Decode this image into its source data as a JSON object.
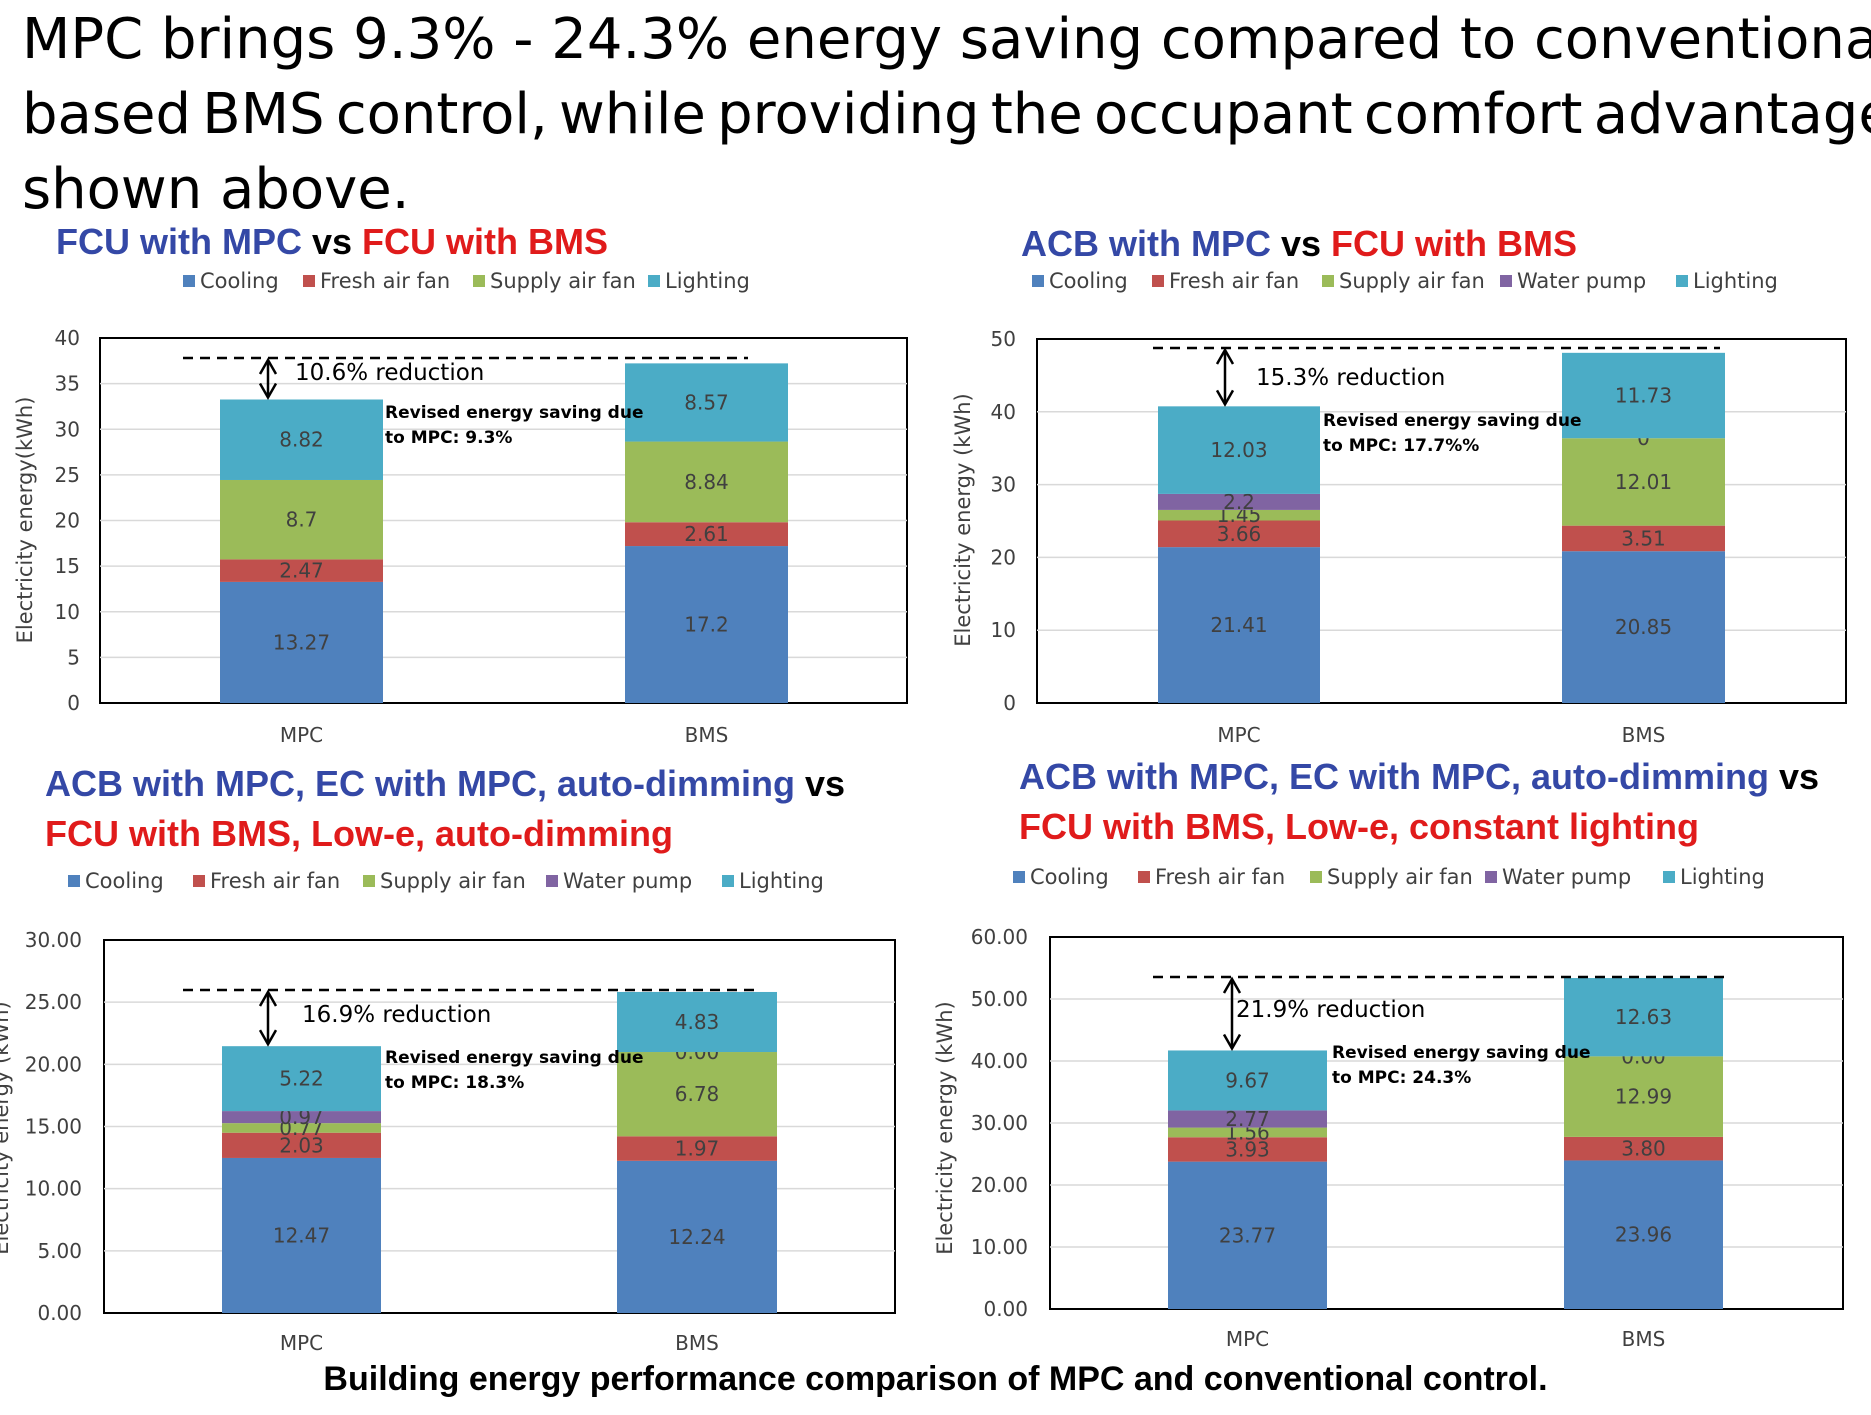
{
  "headline": {
    "line1": "MPC brings 9.3% - 24.3% energy saving compared to conventional reactive",
    "line2_words": [
      "based",
      "BMS",
      "control,",
      "while",
      "providing",
      "the",
      "occupant",
      "comfort",
      "advantages"
    ],
    "line3": "shown above."
  },
  "caption": "Building energy performance comparison of MPC and conventional control.",
  "colors": {
    "Cooling": "#4f81bd",
    "Fresh air fan": "#c0504d",
    "Supply air fan": "#9bbb59",
    "Water pump": "#8064a2",
    "Lighting": "#4bacc6"
  },
  "charts": [
    {
      "title_lines": [
        [
          {
            "text": "FCU with MPC",
            "color": "blue"
          },
          {
            "text": " vs ",
            "color": "blk"
          },
          {
            "text": "FCU with BMS",
            "color": "red"
          }
        ]
      ],
      "legend": [
        "Cooling",
        "Fresh air fan",
        "Supply air fan",
        "Lighting"
      ],
      "ylabel": "Electricity energy(kWh)",
      "annotation": "10.6% reduction",
      "note": [
        "Revised energy saving due",
        "to MPC: 9.3%"
      ]
    },
    {
      "title_lines": [
        [
          {
            "text": "ACB with MPC",
            "color": "blue"
          },
          {
            "text": " vs ",
            "color": "blk"
          },
          {
            "text": "FCU with BMS",
            "color": "red"
          }
        ]
      ],
      "legend": [
        "Cooling",
        "Fresh air fan",
        "Supply air fan",
        "Water pump",
        "Lighting"
      ],
      "ylabel": "Electricity energy (kWh)",
      "annotation": "15.3% reduction",
      "note": [
        "Revised energy saving due",
        "to MPC: 17.7%%"
      ]
    },
    {
      "title_lines": [
        [
          {
            "text": "ACB with MPC, EC with MPC, auto-dimming",
            "color": "blue"
          },
          {
            "text": " vs",
            "color": "blk"
          }
        ],
        [
          {
            "text": "FCU with BMS, Low-e, auto-dimming",
            "color": "red"
          }
        ]
      ],
      "legend": [
        "Cooling",
        "Fresh air fan",
        "Supply air fan",
        "Water pump",
        "Lighting"
      ],
      "ylabel": "Electricity energy (kWh)",
      "annotation": "16.9% reduction",
      "note": [
        "Revised energy saving due",
        "to MPC: 18.3%"
      ]
    },
    {
      "title_lines": [
        [
          {
            "text": "ACB with MPC, EC with MPC, auto-dimming",
            "color": "blue"
          },
          {
            "text": " vs",
            "color": "blk"
          }
        ],
        [
          {
            "text": "FCU with BMS, Low-e, constant lighting",
            "color": "red"
          }
        ]
      ],
      "legend": [
        "Cooling",
        "Fresh air fan",
        "Supply air fan",
        "Water pump",
        "Lighting"
      ],
      "ylabel": "Electricity energy (kWh)",
      "annotation": "21.9% reduction",
      "note": [
        "Revised energy saving due",
        "to MPC: 24.3%"
      ]
    }
  ],
  "chart_data": [
    {
      "type": "bar",
      "stacked": true,
      "categories": [
        "MPC",
        "BMS"
      ],
      "ylim": [
        0,
        40
      ],
      "yticks": [
        "0",
        "5",
        "10",
        "15",
        "20",
        "25",
        "30",
        "35",
        "40"
      ],
      "series": [
        {
          "name": "Cooling",
          "values": [
            13.27,
            17.2
          ],
          "labels": [
            "13.27",
            "17.2"
          ]
        },
        {
          "name": "Fresh air fan",
          "values": [
            2.47,
            2.61
          ],
          "labels": [
            "2.47",
            "2.61"
          ]
        },
        {
          "name": "Supply air fan",
          "values": [
            8.7,
            8.84
          ],
          "labels": [
            "8.7",
            "8.84"
          ]
        },
        {
          "name": "Lighting",
          "values": [
            8.82,
            8.57
          ],
          "labels": [
            "8.82",
            "8.57"
          ]
        }
      ],
      "grid": true,
      "legend": "top"
    },
    {
      "type": "bar",
      "stacked": true,
      "categories": [
        "MPC",
        "BMS"
      ],
      "ylim": [
        0,
        50
      ],
      "yticks": [
        "0",
        "10",
        "20",
        "30",
        "40",
        "50"
      ],
      "series": [
        {
          "name": "Cooling",
          "values": [
            21.41,
            20.85
          ],
          "labels": [
            "21.41",
            "20.85"
          ]
        },
        {
          "name": "Fresh air fan",
          "values": [
            3.66,
            3.51
          ],
          "labels": [
            "3.66",
            "3.51"
          ]
        },
        {
          "name": "Supply air fan",
          "values": [
            1.45,
            12.01
          ],
          "labels": [
            "1.45",
            "12.01"
          ]
        },
        {
          "name": "Water pump",
          "values": [
            2.2,
            0
          ],
          "labels": [
            "2.2",
            "0"
          ]
        },
        {
          "name": "Lighting",
          "values": [
            12.03,
            11.73
          ],
          "labels": [
            "12.03",
            "11.73"
          ]
        }
      ],
      "grid": true,
      "legend": "top"
    },
    {
      "type": "bar",
      "stacked": true,
      "categories": [
        "MPC",
        "BMS"
      ],
      "ylim": [
        0,
        30
      ],
      "yticks": [
        "0.00",
        "5.00",
        "10.00",
        "15.00",
        "20.00",
        "25.00",
        "30.00"
      ],
      "series": [
        {
          "name": "Cooling",
          "values": [
            12.47,
            12.24
          ],
          "labels": [
            "12.47",
            "12.24"
          ]
        },
        {
          "name": "Fresh air fan",
          "values": [
            2.03,
            1.97
          ],
          "labels": [
            "2.03",
            "1.97"
          ]
        },
        {
          "name": "Supply air fan",
          "values": [
            0.77,
            6.78
          ],
          "labels": [
            "0.77",
            "6.78"
          ]
        },
        {
          "name": "Water pump",
          "values": [
            0.97,
            0
          ],
          "labels": [
            "0.97",
            "0.00"
          ]
        },
        {
          "name": "Lighting",
          "values": [
            5.22,
            4.83
          ],
          "labels": [
            "5.22",
            "4.83"
          ]
        }
      ],
      "grid": true,
      "legend": "top"
    },
    {
      "type": "bar",
      "stacked": true,
      "categories": [
        "MPC",
        "BMS"
      ],
      "ylim": [
        0,
        60
      ],
      "yticks": [
        "0.00",
        "10.00",
        "20.00",
        "30.00",
        "40.00",
        "50.00",
        "60.00"
      ],
      "series": [
        {
          "name": "Cooling",
          "values": [
            23.77,
            23.96
          ],
          "labels": [
            "23.77",
            "23.96"
          ]
        },
        {
          "name": "Fresh air fan",
          "values": [
            3.93,
            3.8
          ],
          "labels": [
            "3.93",
            "3.80"
          ]
        },
        {
          "name": "Supply air fan",
          "values": [
            1.56,
            12.99
          ],
          "labels": [
            "1.56",
            "12.99"
          ]
        },
        {
          "name": "Water pump",
          "values": [
            2.77,
            0
          ],
          "labels": [
            "2.77",
            "0.00"
          ]
        },
        {
          "name": "Lighting",
          "values": [
            9.67,
            12.63
          ],
          "labels": [
            "9.67",
            "12.63"
          ]
        }
      ],
      "grid": true,
      "legend": "top"
    }
  ]
}
